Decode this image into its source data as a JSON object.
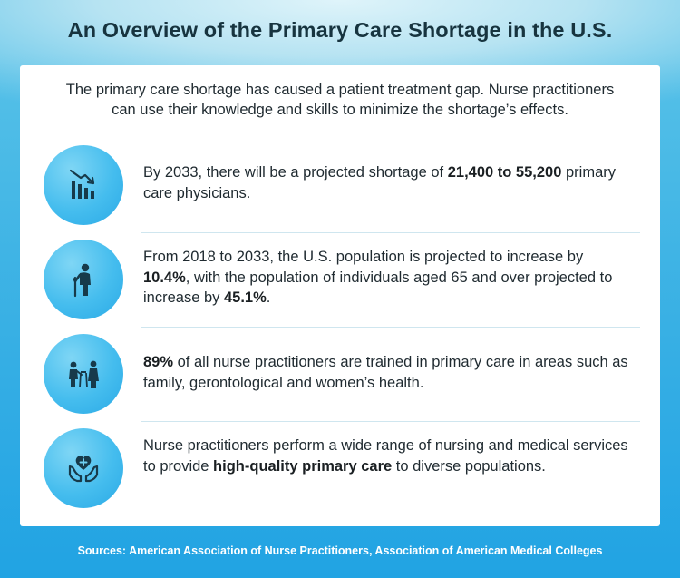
{
  "title": "An Overview of the Primary Care Shortage in the U.S.",
  "intro": "The primary care shortage has caused a patient treatment gap. Nurse practitioners can use their knowledge and skills to minimize the shortage’s effects.",
  "items": [
    {
      "icon": "declining-bar-chart-icon",
      "t1": "By 2033, there will be a projected shortage of ",
      "b1": "21,400 to 55,200",
      "t2": " primary care physicians.",
      "b2": "",
      "t3": ""
    },
    {
      "icon": "elderly-person-icon",
      "t1": "From 2018 to 2033, the U.S. population is projected to increase by ",
      "b1": "10.4%",
      "t2": ", with the population of individuals aged 65 and over projected to increase by ",
      "b2": "45.1%",
      "t3": "."
    },
    {
      "icon": "caregiver-with-patient-icon",
      "t1": "",
      "b1": "89%",
      "t2": " of all nurse practitioners are trained in primary care in areas such as family, gerontological and women’s health.",
      "b2": "",
      "t3": ""
    },
    {
      "icon": "hands-holding-heart-icon",
      "t1": "Nurse practitioners perform a wide range of nursing and medical services to provide ",
      "b1": "high-quality primary care",
      "t2": " to diverse populations.",
      "b2": "",
      "t3": ""
    }
  ],
  "sources": "Sources: American Association of Nurse Practitioners, Association of American Medical Colleges",
  "colors": {
    "accent": "#35ade3",
    "title": "#17343f",
    "icon_fg": "#173a4a"
  }
}
